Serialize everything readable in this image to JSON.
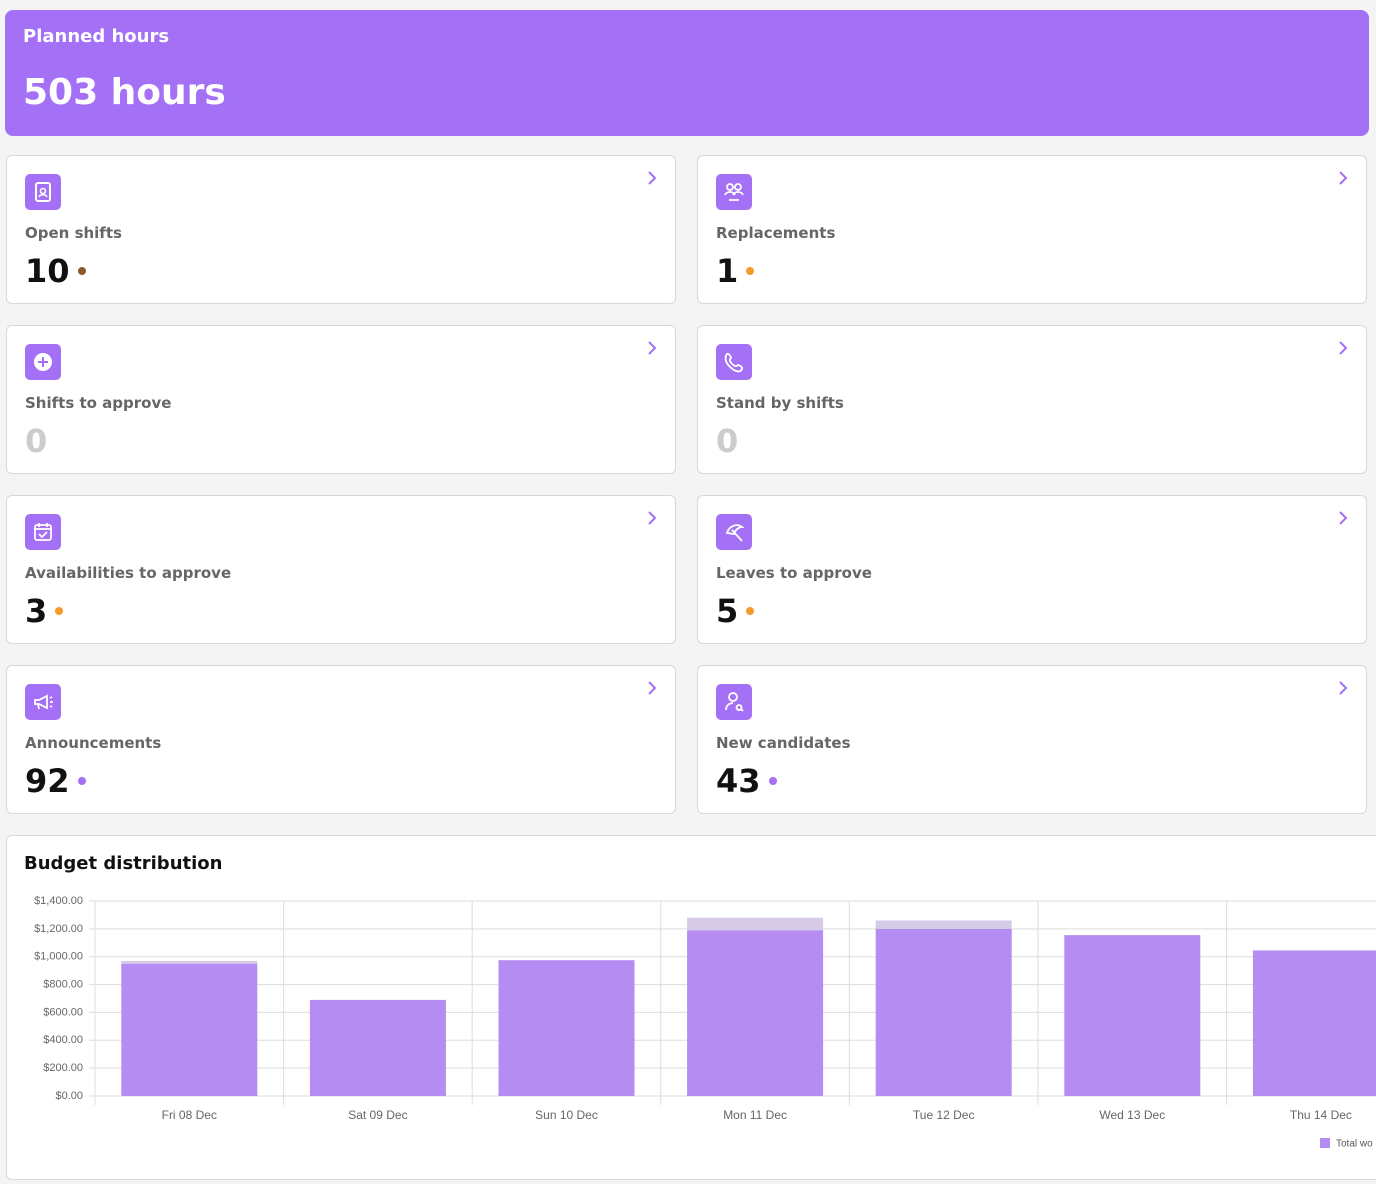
{
  "header": {
    "title": "Planned hours",
    "value": "503 hours"
  },
  "cards": [
    {
      "label": "Open shifts",
      "value": 10,
      "dot": "#8a5a2b"
    },
    {
      "label": "Replacements",
      "value": 1,
      "dot": "#f39a2b"
    },
    {
      "label": "Shifts to approve",
      "value": 0
    },
    {
      "label": "Stand by shifts",
      "value": 0
    },
    {
      "label": "Availabilities to approve",
      "value": 3,
      "dot": "#f39a2b"
    },
    {
      "label": "Leaves to approve",
      "value": 5,
      "dot": "#f39a2b"
    },
    {
      "label": "Announcements",
      "value": 92,
      "dot": "#a470f5"
    },
    {
      "label": "New candidates",
      "value": 43,
      "dot": "#a470f5"
    }
  ],
  "chart_data": {
    "type": "bar",
    "stacked": true,
    "title": "Budget distribution",
    "categories": [
      "Fri 08 Dec",
      "Sat 09 Dec",
      "Sun 10 Dec",
      "Mon 11 Dec",
      "Tue 12 Dec",
      "Wed 13 Dec",
      "Thu 14 Dec"
    ],
    "series": [
      {
        "name": "Total wo",
        "color": "#b48cf2",
        "values": [
          950,
          690,
          975,
          1190,
          1200,
          1155,
          1045
        ]
      },
      {
        "color": "#d6cbe6",
        "values": [
          20,
          0,
          0,
          90,
          60,
          0,
          0
        ]
      }
    ],
    "ylim": [
      0,
      1400
    ],
    "yticks": [
      {
        "value": 0,
        "label": "$0.00"
      },
      {
        "value": 200,
        "label": "$200.00"
      },
      {
        "value": 400,
        "label": "$400.00"
      },
      {
        "value": 600,
        "label": "$600.00"
      },
      {
        "value": 800,
        "label": "$800.00"
      },
      {
        "value": 1000,
        "label": "$1,000.00"
      },
      {
        "value": 1200,
        "label": "$1,200.00"
      },
      {
        "value": 1400,
        "label": "$1,400.00"
      }
    ],
    "grid": true,
    "legend": "bottom-right"
  }
}
